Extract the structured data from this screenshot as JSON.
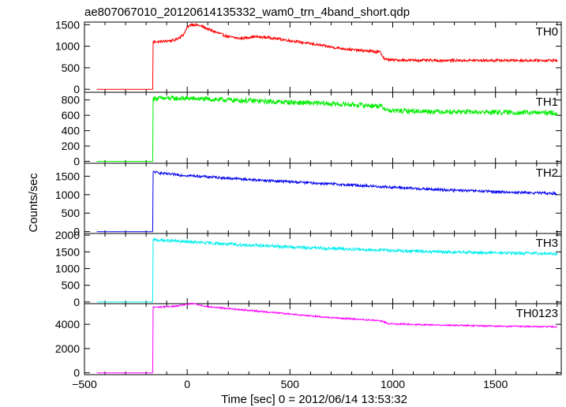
{
  "chart_data": {
    "type": "line",
    "title": "ae807067010_20120614135332_wam0_trn_4band_short.qdp",
    "xlabel": "Time [sec] 0 = 2012/06/14 13:53:32",
    "ylabel": "Counts/sec",
    "xlim": [
      -500,
      1820
    ],
    "x_ticks": [
      -500,
      0,
      500,
      1000,
      1500
    ],
    "grid": false,
    "panels": [
      {
        "name": "TH0",
        "color": "#ff0000",
        "ylim": [
          -70,
          1560
        ],
        "y_ticks": [
          0,
          500,
          1000,
          1500
        ],
        "points": [
          [
            -440,
            0
          ],
          [
            -168,
            0
          ],
          [
            -166,
            1100
          ],
          [
            -120,
            1110
          ],
          [
            -60,
            1140
          ],
          [
            -20,
            1260
          ],
          [
            0,
            1430
          ],
          [
            20,
            1510
          ],
          [
            60,
            1480
          ],
          [
            120,
            1360
          ],
          [
            200,
            1220
          ],
          [
            260,
            1180
          ],
          [
            320,
            1220
          ],
          [
            400,
            1200
          ],
          [
            500,
            1130
          ],
          [
            600,
            1060
          ],
          [
            700,
            980
          ],
          [
            800,
            920
          ],
          [
            900,
            880
          ],
          [
            940,
            860
          ],
          [
            960,
            700
          ],
          [
            1000,
            680
          ],
          [
            1200,
            670
          ],
          [
            1400,
            670
          ],
          [
            1600,
            670
          ],
          [
            1800,
            670
          ]
        ],
        "noise": 30
      },
      {
        "name": "TH1",
        "color": "#00ee00",
        "ylim": [
          -25,
          900
        ],
        "y_ticks": [
          0,
          200,
          400,
          600,
          800
        ],
        "points": [
          [
            -440,
            0
          ],
          [
            -168,
            0
          ],
          [
            -166,
            820
          ],
          [
            0,
            820
          ],
          [
            200,
            800
          ],
          [
            500,
            770
          ],
          [
            800,
            740
          ],
          [
            940,
            720
          ],
          [
            980,
            660
          ],
          [
            1200,
            650
          ],
          [
            1500,
            640
          ],
          [
            1800,
            630
          ]
        ],
        "noise": 32
      },
      {
        "name": "TH2",
        "color": "#0000ee",
        "ylim": [
          -50,
          1850
        ],
        "y_ticks": [
          0,
          500,
          1000,
          1500
        ],
        "points": [
          [
            -440,
            0
          ],
          [
            -168,
            0
          ],
          [
            -166,
            1620
          ],
          [
            -100,
            1560
          ],
          [
            0,
            1520
          ],
          [
            300,
            1410
          ],
          [
            600,
            1320
          ],
          [
            900,
            1230
          ],
          [
            1200,
            1140
          ],
          [
            1500,
            1080
          ],
          [
            1800,
            1030
          ]
        ],
        "noise": 35
      },
      {
        "name": "TH3",
        "color": "#00eeee",
        "ylim": [
          -50,
          2050
        ],
        "y_ticks": [
          0,
          500,
          1000,
          1500,
          2000
        ],
        "points": [
          [
            -440,
            0
          ],
          [
            -168,
            0
          ],
          [
            -166,
            1860
          ],
          [
            0,
            1800
          ],
          [
            300,
            1700
          ],
          [
            600,
            1620
          ],
          [
            900,
            1560
          ],
          [
            1200,
            1500
          ],
          [
            1500,
            1470
          ],
          [
            1800,
            1440
          ]
        ],
        "noise": 45
      },
      {
        "name": "TH0123",
        "color": "#ff00ff",
        "ylim": [
          -150,
          5700
        ],
        "y_ticks": [
          0,
          2000,
          4000
        ],
        "points": [
          [
            -440,
            0
          ],
          [
            -168,
            0
          ],
          [
            -166,
            5400
          ],
          [
            -50,
            5500
          ],
          [
            0,
            5650
          ],
          [
            30,
            5700
          ],
          [
            100,
            5450
          ],
          [
            300,
            5150
          ],
          [
            500,
            4850
          ],
          [
            700,
            4550
          ],
          [
            900,
            4350
          ],
          [
            950,
            4250
          ],
          [
            980,
            4050
          ],
          [
            1200,
            3950
          ],
          [
            1500,
            3850
          ],
          [
            1800,
            3800
          ]
        ],
        "noise": 60
      }
    ]
  }
}
